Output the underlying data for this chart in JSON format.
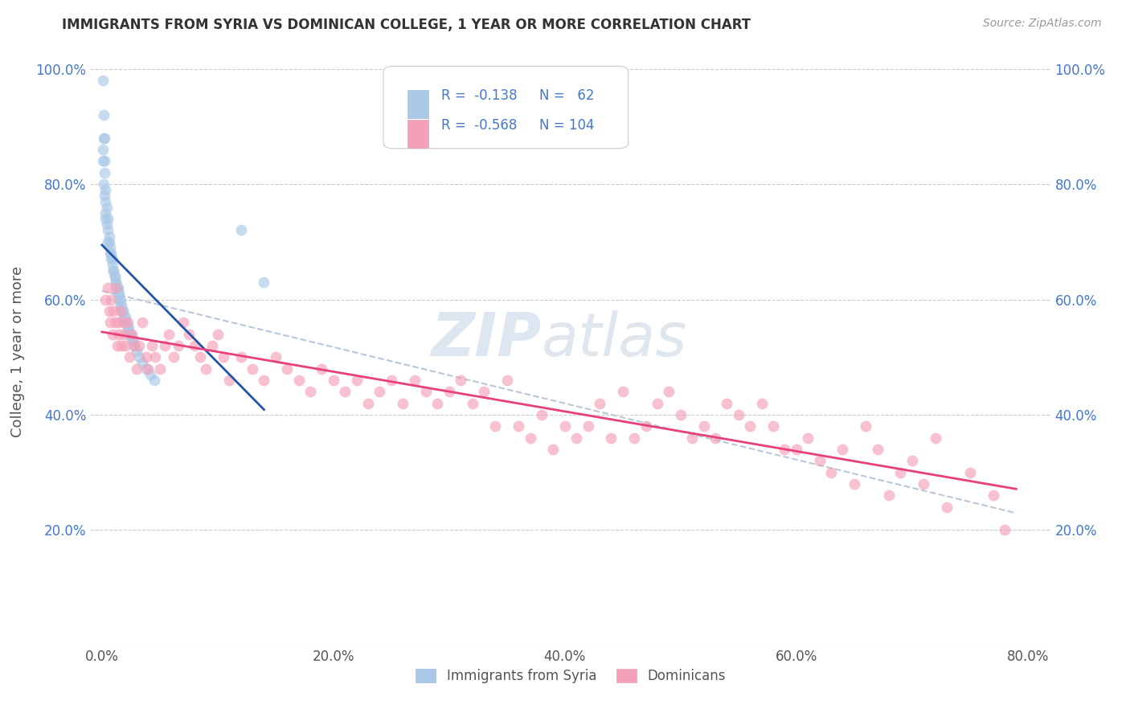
{
  "title": "IMMIGRANTS FROM SYRIA VS DOMINICAN COLLEGE, 1 YEAR OR MORE CORRELATION CHART",
  "source_text": "Source: ZipAtlas.com",
  "ylabel": "College, 1 year or more",
  "xlim": [
    -1,
    82
  ],
  "ylim": [
    0,
    102
  ],
  "xtick_vals": [
    0,
    20,
    40,
    60,
    80
  ],
  "xtick_labels": [
    "0.0%",
    "20.0%",
    "40.0%",
    "60.0%",
    "80.0%"
  ],
  "ytick_vals": [
    0,
    20,
    40,
    60,
    80,
    100
  ],
  "ytick_labels": [
    "",
    "20.0%",
    "40.0%",
    "60.0%",
    "80.0%",
    "100.0%"
  ],
  "right_ytick_vals": [
    0,
    20,
    40,
    60,
    80,
    100
  ],
  "right_ytick_labels": [
    "",
    "20.0%",
    "40.0%",
    "60.0%",
    "80.0%",
    "100.0%"
  ],
  "color_syria": "#aac8e8",
  "color_dominican": "#f4a0b8",
  "line_color_syria": "#2255aa",
  "line_color_dominican": "#e8407a",
  "line_color_combined": "#b8c8d8",
  "background_color": "#ffffff",
  "grid_color": "#cccccc",
  "watermark_zip": "ZIP",
  "watermark_atlas": "atlas",
  "legend_text_color": "#4477cc",
  "title_color": "#333333",
  "axis_label_color": "#555555",
  "tick_color": "#555555",
  "syria_points": [
    [
      0.1,
      98
    ],
    [
      0.15,
      92
    ],
    [
      0.15,
      88
    ],
    [
      0.2,
      88
    ],
    [
      0.1,
      86
    ],
    [
      0.2,
      84
    ],
    [
      0.1,
      84
    ],
    [
      0.2,
      82
    ],
    [
      0.15,
      80
    ],
    [
      0.3,
      79
    ],
    [
      0.2,
      78
    ],
    [
      0.3,
      77
    ],
    [
      0.4,
      76
    ],
    [
      0.3,
      75
    ],
    [
      0.3,
      74
    ],
    [
      0.5,
      74
    ],
    [
      0.4,
      73
    ],
    [
      0.5,
      72
    ],
    [
      0.6,
      71
    ],
    [
      0.5,
      70
    ],
    [
      0.6,
      70
    ],
    [
      0.7,
      69
    ],
    [
      0.7,
      68
    ],
    [
      0.8,
      68
    ],
    [
      0.8,
      67
    ],
    [
      0.9,
      67
    ],
    [
      0.9,
      66
    ],
    [
      1.0,
      65
    ],
    [
      1.0,
      65
    ],
    [
      1.1,
      64
    ],
    [
      1.1,
      64
    ],
    [
      1.2,
      63
    ],
    [
      1.2,
      63
    ],
    [
      1.3,
      62
    ],
    [
      1.4,
      62
    ],
    [
      1.4,
      61
    ],
    [
      1.5,
      61
    ],
    [
      1.5,
      60
    ],
    [
      1.6,
      60
    ],
    [
      1.6,
      59
    ],
    [
      1.7,
      59
    ],
    [
      1.8,
      58
    ],
    [
      1.8,
      58
    ],
    [
      1.9,
      57
    ],
    [
      2.0,
      57
    ],
    [
      2.0,
      56
    ],
    [
      2.1,
      56
    ],
    [
      2.2,
      55
    ],
    [
      2.3,
      55
    ],
    [
      2.4,
      54
    ],
    [
      2.5,
      54
    ],
    [
      2.6,
      53
    ],
    [
      2.7,
      53
    ],
    [
      2.8,
      52
    ],
    [
      3.0,
      51
    ],
    [
      3.2,
      50
    ],
    [
      3.5,
      49
    ],
    [
      3.8,
      48
    ],
    [
      4.2,
      47
    ],
    [
      4.5,
      46
    ],
    [
      12.0,
      72
    ],
    [
      14.0,
      63
    ]
  ],
  "dominican_points": [
    [
      0.3,
      60
    ],
    [
      0.5,
      62
    ],
    [
      0.6,
      58
    ],
    [
      0.7,
      56
    ],
    [
      0.8,
      60
    ],
    [
      0.9,
      54
    ],
    [
      1.0,
      58
    ],
    [
      1.1,
      56
    ],
    [
      1.2,
      62
    ],
    [
      1.3,
      52
    ],
    [
      1.4,
      56
    ],
    [
      1.5,
      54
    ],
    [
      1.6,
      58
    ],
    [
      1.7,
      52
    ],
    [
      1.8,
      56
    ],
    [
      1.9,
      54
    ],
    [
      2.0,
      52
    ],
    [
      2.2,
      56
    ],
    [
      2.4,
      50
    ],
    [
      2.6,
      54
    ],
    [
      2.8,
      52
    ],
    [
      3.0,
      48
    ],
    [
      3.2,
      52
    ],
    [
      3.5,
      56
    ],
    [
      3.8,
      50
    ],
    [
      4.0,
      48
    ],
    [
      4.3,
      52
    ],
    [
      4.6,
      50
    ],
    [
      5.0,
      48
    ],
    [
      5.4,
      52
    ],
    [
      5.8,
      54
    ],
    [
      6.2,
      50
    ],
    [
      6.6,
      52
    ],
    [
      7.0,
      56
    ],
    [
      7.5,
      54
    ],
    [
      8.0,
      52
    ],
    [
      8.5,
      50
    ],
    [
      9.0,
      48
    ],
    [
      9.5,
      52
    ],
    [
      10.0,
      54
    ],
    [
      10.5,
      50
    ],
    [
      11.0,
      46
    ],
    [
      12.0,
      50
    ],
    [
      13.0,
      48
    ],
    [
      14.0,
      46
    ],
    [
      15.0,
      50
    ],
    [
      16.0,
      48
    ],
    [
      17.0,
      46
    ],
    [
      18.0,
      44
    ],
    [
      19.0,
      48
    ],
    [
      20.0,
      46
    ],
    [
      21.0,
      44
    ],
    [
      22.0,
      46
    ],
    [
      23.0,
      42
    ],
    [
      24.0,
      44
    ],
    [
      25.0,
      46
    ],
    [
      26.0,
      42
    ],
    [
      27.0,
      46
    ],
    [
      28.0,
      44
    ],
    [
      29.0,
      42
    ],
    [
      30.0,
      44
    ],
    [
      31.0,
      46
    ],
    [
      32.0,
      42
    ],
    [
      33.0,
      44
    ],
    [
      34.0,
      38
    ],
    [
      35.0,
      46
    ],
    [
      36.0,
      38
    ],
    [
      37.0,
      36
    ],
    [
      38.0,
      40
    ],
    [
      39.0,
      34
    ],
    [
      40.0,
      38
    ],
    [
      41.0,
      36
    ],
    [
      42.0,
      38
    ],
    [
      43.0,
      42
    ],
    [
      44.0,
      36
    ],
    [
      45.0,
      44
    ],
    [
      46.0,
      36
    ],
    [
      47.0,
      38
    ],
    [
      48.0,
      42
    ],
    [
      49.0,
      44
    ],
    [
      50.0,
      40
    ],
    [
      51.0,
      36
    ],
    [
      52.0,
      38
    ],
    [
      53.0,
      36
    ],
    [
      54.0,
      42
    ],
    [
      55.0,
      40
    ],
    [
      56.0,
      38
    ],
    [
      57.0,
      42
    ],
    [
      58.0,
      38
    ],
    [
      59.0,
      34
    ],
    [
      60.0,
      34
    ],
    [
      61.0,
      36
    ],
    [
      62.0,
      32
    ],
    [
      63.0,
      30
    ],
    [
      64.0,
      34
    ],
    [
      65.0,
      28
    ],
    [
      66.0,
      38
    ],
    [
      67.0,
      34
    ],
    [
      68.0,
      26
    ],
    [
      69.0,
      30
    ],
    [
      70.0,
      32
    ],
    [
      71.0,
      28
    ],
    [
      72.0,
      36
    ],
    [
      73.0,
      24
    ],
    [
      75.0,
      30
    ],
    [
      77.0,
      26
    ],
    [
      78.0,
      20
    ]
  ]
}
